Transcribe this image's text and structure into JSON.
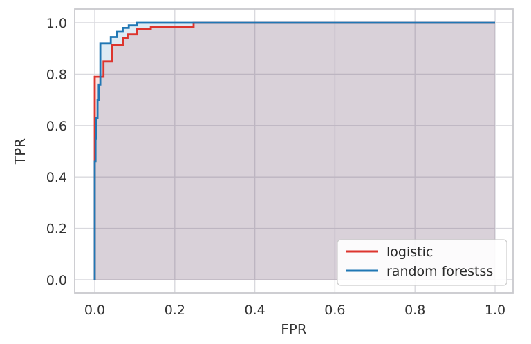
{
  "chart_data": {
    "type": "line",
    "subtype": "roc-step-curves-with-area-fill",
    "title": "",
    "xlabel": "FPR",
    "ylabel": "TPR",
    "xlim": [
      -0.05,
      1.05
    ],
    "ylim": [
      -0.05,
      1.05
    ],
    "xticks": [
      "0.0",
      "0.2",
      "0.4",
      "0.6",
      "0.8",
      "1.0"
    ],
    "yticks": [
      "0.0",
      "0.2",
      "0.4",
      "0.6",
      "0.8",
      "1.0"
    ],
    "xtick_values": [
      0.0,
      0.2,
      0.4,
      0.6,
      0.8,
      1.0
    ],
    "ytick_values": [
      0.0,
      0.2,
      0.4,
      0.6,
      0.8,
      1.0
    ],
    "grid": true,
    "legend_position": "lower right",
    "series": [
      {
        "name": "logistic",
        "slug": "logistic",
        "color": "#dd352e",
        "fill": true,
        "fill_alpha": 0.15,
        "x": [
          0,
          0,
          0.022,
          0.022,
          0.043,
          0.043,
          0.071,
          0.071,
          0.082,
          0.082,
          0.105,
          0.105,
          0.14,
          0.14,
          0.247,
          0.247,
          1.0
        ],
        "y": [
          0,
          0.79,
          0.79,
          0.85,
          0.85,
          0.915,
          0.915,
          0.94,
          0.94,
          0.955,
          0.955,
          0.975,
          0.975,
          0.985,
          0.985,
          1.0,
          1.0
        ]
      },
      {
        "name": "random forestss",
        "slug": "random-forests",
        "color": "#2077b4",
        "fill": true,
        "fill_alpha": 0.15,
        "x": [
          0,
          0,
          0.002,
          0.002,
          0.004,
          0.004,
          0.007,
          0.007,
          0.01,
          0.01,
          0.014,
          0.014,
          0.04,
          0.04,
          0.056,
          0.056,
          0.07,
          0.07,
          0.085,
          0.085,
          0.105,
          0.105,
          1.0
        ],
        "y": [
          0,
          0.46,
          0.46,
          0.55,
          0.55,
          0.63,
          0.63,
          0.7,
          0.7,
          0.76,
          0.76,
          0.92,
          0.92,
          0.945,
          0.945,
          0.965,
          0.965,
          0.98,
          0.98,
          0.99,
          0.99,
          1.0,
          1.0
        ]
      }
    ]
  },
  "style": {
    "grid_color": "#d9d9de",
    "spine_color": "#c9c9cd",
    "text_color": "#333333",
    "plot_bg": "#ffffff",
    "legend_bg": "#ffffff",
    "legend_border": "#cccccc"
  }
}
